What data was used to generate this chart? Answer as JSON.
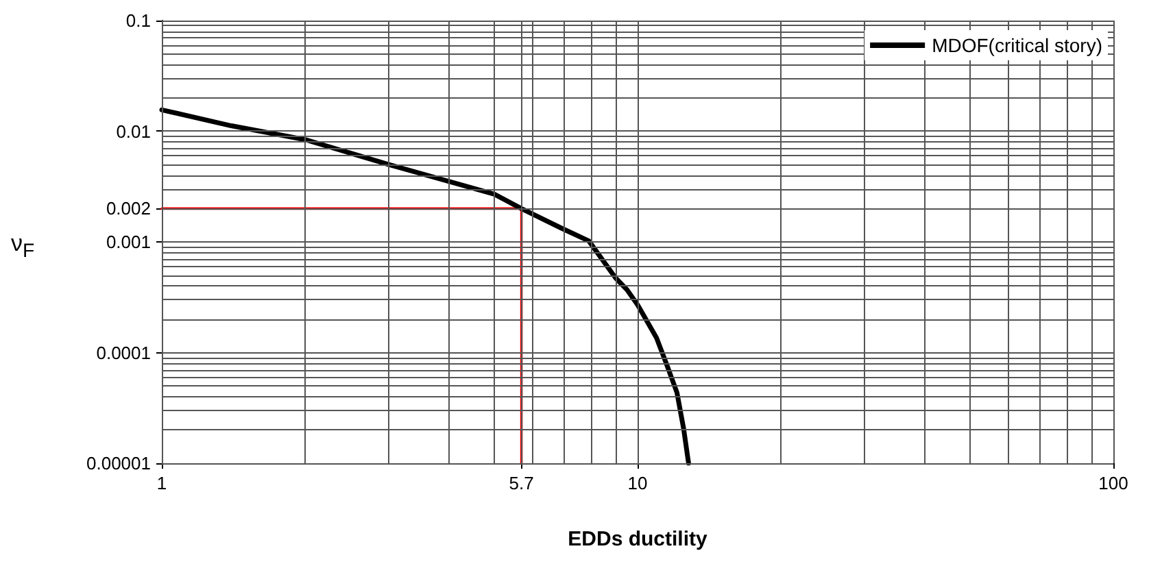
{
  "chart_data": {
    "type": "line",
    "xlabel": "EDDs ductility",
    "ylabel": "ν$_{F}$",
    "log": "xy",
    "grid": true,
    "legend": "top right",
    "marker": "none",
    "line_style": "solid",
    "xlim": [
      1,
      100
    ],
    "xticks": [
      1,
      5.7,
      10,
      100
    ],
    "ylim": [
      1e-05,
      0.1
    ],
    "yticks": [
      0.1,
      0.01,
      0.002,
      0.001,
      0.0001,
      {
        "value": 1e-05,
        "label": "0.00001"
      }
    ],
    "series": [
      {
        "name": "MDOF(critical story)",
        "color": "#000000",
        "x": [
          1,
          1.4,
          2.0,
          3.0,
          5.0,
          5.7,
          6.92,
          7.9,
          9.0,
          9.5,
          10.0,
          10.96,
          11.5,
          12.1,
          12.5,
          12.8
        ],
        "values": [
          0.0156,
          0.0112,
          0.0084,
          0.005,
          0.0027,
          0.002,
          0.00133,
          0.00102,
          0.00047,
          0.00037,
          0.00027,
          0.000136,
          7.9e-05,
          4.35e-05,
          2.04e-05,
          1e-05
        ]
      },
      {
        "color": "#ff0000",
        "x": [
          1,
          5.7,
          5.7
        ],
        "values": [
          0.002,
          0.002,
          1e-05
        ]
      }
    ]
  }
}
